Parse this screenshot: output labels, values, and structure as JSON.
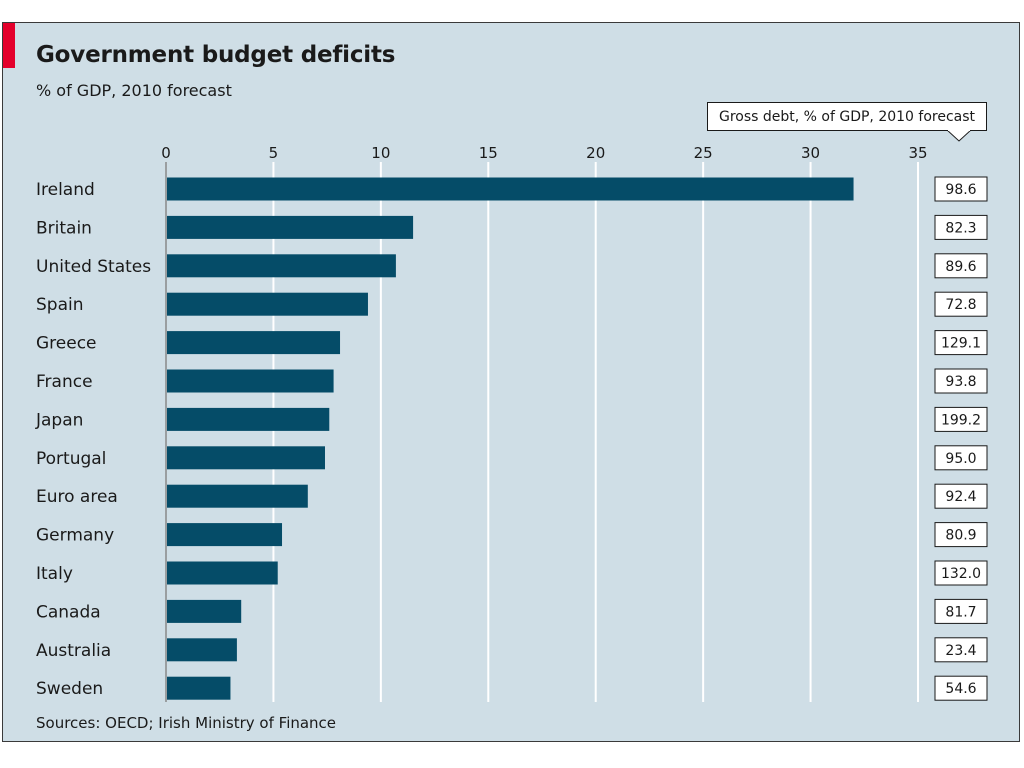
{
  "header": {
    "title": "Government budget deficits",
    "subtitle": "% of GDP, 2010 forecast",
    "accent_color": "#e4002b"
  },
  "debt_column": {
    "label": "Gross debt, % of GDP, 2010 forecast",
    "values": [
      "98.6",
      "82.3",
      "89.6",
      "72.8",
      "129.1",
      "93.8",
      "199.2",
      "95.0",
      "92.4",
      "80.9",
      "132.0",
      "81.7",
      "23.4",
      "54.6"
    ]
  },
  "footer": {
    "source": "Sources: OECD; Irish Ministry of Finance"
  },
  "chart_data": {
    "type": "bar",
    "orientation": "horizontal",
    "title": "Government budget deficits",
    "subtitle": "% of GDP, 2010 forecast",
    "categories": [
      "Ireland",
      "Britain",
      "United States",
      "Spain",
      "Greece",
      "France",
      "Japan",
      "Portugal",
      "Euro area",
      "Germany",
      "Italy",
      "Canada",
      "Australia",
      "Sweden"
    ],
    "values": [
      32.0,
      11.5,
      10.7,
      9.4,
      8.1,
      7.8,
      7.6,
      7.4,
      6.6,
      5.4,
      5.2,
      3.5,
      3.3,
      3.0
    ],
    "xlim": [
      0,
      35
    ],
    "xticks": [
      0,
      5,
      10,
      15,
      20,
      25,
      30,
      35
    ],
    "grid": true,
    "bar_color": "#054c68",
    "grid_color": "#ffffff"
  }
}
